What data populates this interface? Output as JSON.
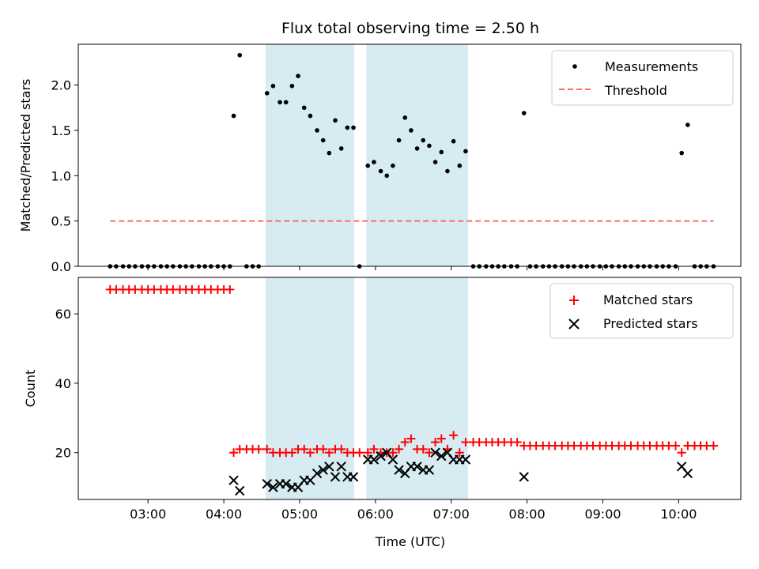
{
  "chart_data": {
    "title": "Flux total observing time = 2.50 h",
    "xlabel": "Time (UTC)",
    "x_tick_labels": [
      "03:00",
      "04:00",
      "05:00",
      "06:00",
      "07:00",
      "08:00",
      "09:00",
      "10:00"
    ],
    "x_ticks_hours": [
      3,
      4,
      5,
      6,
      7,
      8,
      9,
      10
    ],
    "x_range_hours": [
      2.08,
      10.82
    ],
    "shaded_intervals_hours": [
      [
        4.55,
        5.72
      ],
      [
        5.88,
        7.22
      ]
    ],
    "band_color": "#add8e6",
    "panels": [
      {
        "type": "scatter",
        "ylabel": "Matched/Predicted stars",
        "ylim": [
          0,
          2.45
        ],
        "yticks": [
          0.0,
          0.5,
          1.0,
          1.5,
          2.0
        ],
        "ytick_labels": [
          "0.0",
          "0.5",
          "1.0",
          "1.5",
          "2.0"
        ],
        "legend_position": "top-right",
        "series": [
          {
            "name": "Measurements",
            "kind": "points",
            "color": "#000000",
            "points": [
              [
                2.5,
                0
              ],
              [
                2.58,
                0
              ],
              [
                2.67,
                0
              ],
              [
                2.75,
                0
              ],
              [
                2.83,
                0
              ],
              [
                2.92,
                0
              ],
              [
                3.0,
                0
              ],
              [
                3.08,
                0
              ],
              [
                3.17,
                0
              ],
              [
                3.25,
                0
              ],
              [
                3.33,
                0
              ],
              [
                3.42,
                0
              ],
              [
                3.5,
                0
              ],
              [
                3.58,
                0
              ],
              [
                3.67,
                0
              ],
              [
                3.75,
                0
              ],
              [
                3.83,
                0
              ],
              [
                3.92,
                0
              ],
              [
                4.0,
                0
              ],
              [
                4.08,
                0
              ],
              [
                4.13,
                1.66
              ],
              [
                4.21,
                2.33
              ],
              [
                4.3,
                0
              ],
              [
                4.38,
                0
              ],
              [
                4.46,
                0
              ],
              [
                4.57,
                1.91
              ],
              [
                4.65,
                1.99
              ],
              [
                4.74,
                1.81
              ],
              [
                4.82,
                1.81
              ],
              [
                4.9,
                1.99
              ],
              [
                4.98,
                2.1
              ],
              [
                5.06,
                1.75
              ],
              [
                5.14,
                1.66
              ],
              [
                5.23,
                1.5
              ],
              [
                5.31,
                1.39
              ],
              [
                5.39,
                1.25
              ],
              [
                5.47,
                1.61
              ],
              [
                5.55,
                1.3
              ],
              [
                5.63,
                1.53
              ],
              [
                5.71,
                1.53
              ],
              [
                5.79,
                0
              ],
              [
                5.9,
                1.11
              ],
              [
                5.98,
                1.15
              ],
              [
                6.07,
                1.05
              ],
              [
                6.15,
                1.0
              ],
              [
                6.23,
                1.11
              ],
              [
                6.31,
                1.39
              ],
              [
                6.39,
                1.64
              ],
              [
                6.47,
                1.5
              ],
              [
                6.55,
                1.3
              ],
              [
                6.63,
                1.39
              ],
              [
                6.71,
                1.33
              ],
              [
                6.79,
                1.15
              ],
              [
                6.87,
                1.26
              ],
              [
                6.95,
                1.05
              ],
              [
                7.03,
                1.38
              ],
              [
                7.11,
                1.11
              ],
              [
                7.19,
                1.27
              ],
              [
                7.29,
                0
              ],
              [
                7.37,
                0
              ],
              [
                7.46,
                0
              ],
              [
                7.54,
                0
              ],
              [
                7.62,
                0
              ],
              [
                7.7,
                0
              ],
              [
                7.79,
                0
              ],
              [
                7.87,
                0
              ],
              [
                7.96,
                1.69
              ],
              [
                8.04,
                0
              ],
              [
                8.12,
                0
              ],
              [
                8.21,
                0
              ],
              [
                8.29,
                0
              ],
              [
                8.37,
                0
              ],
              [
                8.46,
                0
              ],
              [
                8.54,
                0
              ],
              [
                8.62,
                0
              ],
              [
                8.71,
                0
              ],
              [
                8.79,
                0
              ],
              [
                8.87,
                0
              ],
              [
                8.96,
                0
              ],
              [
                9.04,
                0
              ],
              [
                9.12,
                0
              ],
              [
                9.21,
                0
              ],
              [
                9.29,
                0
              ],
              [
                9.37,
                0
              ],
              [
                9.46,
                0
              ],
              [
                9.54,
                0
              ],
              [
                9.62,
                0
              ],
              [
                9.71,
                0
              ],
              [
                9.79,
                0
              ],
              [
                9.87,
                0
              ],
              [
                9.96,
                0
              ],
              [
                10.04,
                1.25
              ],
              [
                10.12,
                1.56
              ],
              [
                10.21,
                0
              ],
              [
                10.29,
                0
              ],
              [
                10.37,
                0
              ],
              [
                10.46,
                0
              ]
            ]
          },
          {
            "name": "Threshold",
            "kind": "dashed-line",
            "color": "#ff6b6b",
            "x": [
              2.5,
              10.46
            ],
            "y": [
              0.5,
              0.5
            ]
          }
        ]
      },
      {
        "type": "scatter",
        "ylabel": "Count",
        "ylim": [
          6.5,
          70.5
        ],
        "yticks": [
          20,
          40,
          60
        ],
        "ytick_labels": [
          "20",
          "40",
          "60"
        ],
        "legend_position": "top-right",
        "series": [
          {
            "name": "Matched stars",
            "kind": "plus",
            "color": "#ff0000",
            "points": [
              [
                2.5,
                67
              ],
              [
                2.58,
                67
              ],
              [
                2.67,
                67
              ],
              [
                2.75,
                67
              ],
              [
                2.83,
                67
              ],
              [
                2.92,
                67
              ],
              [
                3.0,
                67
              ],
              [
                3.08,
                67
              ],
              [
                3.17,
                67
              ],
              [
                3.25,
                67
              ],
              [
                3.33,
                67
              ],
              [
                3.42,
                67
              ],
              [
                3.5,
                67
              ],
              [
                3.58,
                67
              ],
              [
                3.67,
                67
              ],
              [
                3.75,
                67
              ],
              [
                3.83,
                67
              ],
              [
                3.92,
                67
              ],
              [
                4.0,
                67
              ],
              [
                4.08,
                67
              ],
              [
                4.13,
                20
              ],
              [
                4.21,
                21
              ],
              [
                4.3,
                21
              ],
              [
                4.38,
                21
              ],
              [
                4.46,
                21
              ],
              [
                4.57,
                21
              ],
              [
                4.65,
                20
              ],
              [
                4.74,
                20
              ],
              [
                4.82,
                20
              ],
              [
                4.9,
                20
              ],
              [
                4.98,
                21
              ],
              [
                5.06,
                21
              ],
              [
                5.14,
                20
              ],
              [
                5.23,
                21
              ],
              [
                5.31,
                21
              ],
              [
                5.39,
                20
              ],
              [
                5.47,
                21
              ],
              [
                5.55,
                21
              ],
              [
                5.63,
                20
              ],
              [
                5.71,
                20
              ],
              [
                5.79,
                20
              ],
              [
                5.9,
                20
              ],
              [
                5.98,
                21
              ],
              [
                6.07,
                20
              ],
              [
                6.15,
                20
              ],
              [
                6.23,
                20
              ],
              [
                6.31,
                21
              ],
              [
                6.39,
                23
              ],
              [
                6.47,
                24
              ],
              [
                6.55,
                21
              ],
              [
                6.63,
                21
              ],
              [
                6.71,
                20
              ],
              [
                6.79,
                23
              ],
              [
                6.87,
                24
              ],
              [
                6.95,
                21
              ],
              [
                7.03,
                25
              ],
              [
                7.11,
                20
              ],
              [
                7.19,
                23
              ],
              [
                7.29,
                23
              ],
              [
                7.37,
                23
              ],
              [
                7.46,
                23
              ],
              [
                7.54,
                23
              ],
              [
                7.62,
                23
              ],
              [
                7.7,
                23
              ],
              [
                7.79,
                23
              ],
              [
                7.87,
                23
              ],
              [
                7.96,
                22
              ],
              [
                8.04,
                22
              ],
              [
                8.12,
                22
              ],
              [
                8.21,
                22
              ],
              [
                8.29,
                22
              ],
              [
                8.37,
                22
              ],
              [
                8.46,
                22
              ],
              [
                8.54,
                22
              ],
              [
                8.62,
                22
              ],
              [
                8.71,
                22
              ],
              [
                8.79,
                22
              ],
              [
                8.87,
                22
              ],
              [
                8.96,
                22
              ],
              [
                9.04,
                22
              ],
              [
                9.12,
                22
              ],
              [
                9.21,
                22
              ],
              [
                9.29,
                22
              ],
              [
                9.37,
                22
              ],
              [
                9.46,
                22
              ],
              [
                9.54,
                22
              ],
              [
                9.62,
                22
              ],
              [
                9.71,
                22
              ],
              [
                9.79,
                22
              ],
              [
                9.87,
                22
              ],
              [
                9.96,
                22
              ],
              [
                10.04,
                20
              ],
              [
                10.12,
                22
              ],
              [
                10.21,
                22
              ],
              [
                10.29,
                22
              ],
              [
                10.37,
                22
              ],
              [
                10.46,
                22
              ]
            ]
          },
          {
            "name": "Predicted stars",
            "kind": "cross",
            "color": "#000000",
            "points": [
              [
                4.13,
                12
              ],
              [
                4.21,
                9
              ],
              [
                4.57,
                11
              ],
              [
                4.65,
                10
              ],
              [
                4.74,
                11
              ],
              [
                4.82,
                11
              ],
              [
                4.9,
                10
              ],
              [
                4.98,
                10
              ],
              [
                5.06,
                12
              ],
              [
                5.14,
                12
              ],
              [
                5.23,
                14
              ],
              [
                5.31,
                15
              ],
              [
                5.39,
                16
              ],
              [
                5.47,
                13
              ],
              [
                5.55,
                16
              ],
              [
                5.63,
                13
              ],
              [
                5.71,
                13
              ],
              [
                5.9,
                18
              ],
              [
                5.98,
                18
              ],
              [
                6.07,
                19
              ],
              [
                6.15,
                20
              ],
              [
                6.23,
                18
              ],
              [
                6.31,
                15
              ],
              [
                6.39,
                14
              ],
              [
                6.47,
                16
              ],
              [
                6.55,
                16
              ],
              [
                6.63,
                15
              ],
              [
                6.71,
                15
              ],
              [
                6.79,
                20
              ],
              [
                6.87,
                19
              ],
              [
                6.95,
                20
              ],
              [
                7.03,
                18
              ],
              [
                7.11,
                18
              ],
              [
                7.19,
                18
              ],
              [
                7.96,
                13
              ],
              [
                10.04,
                16
              ],
              [
                10.12,
                14
              ]
            ]
          }
        ]
      }
    ]
  }
}
